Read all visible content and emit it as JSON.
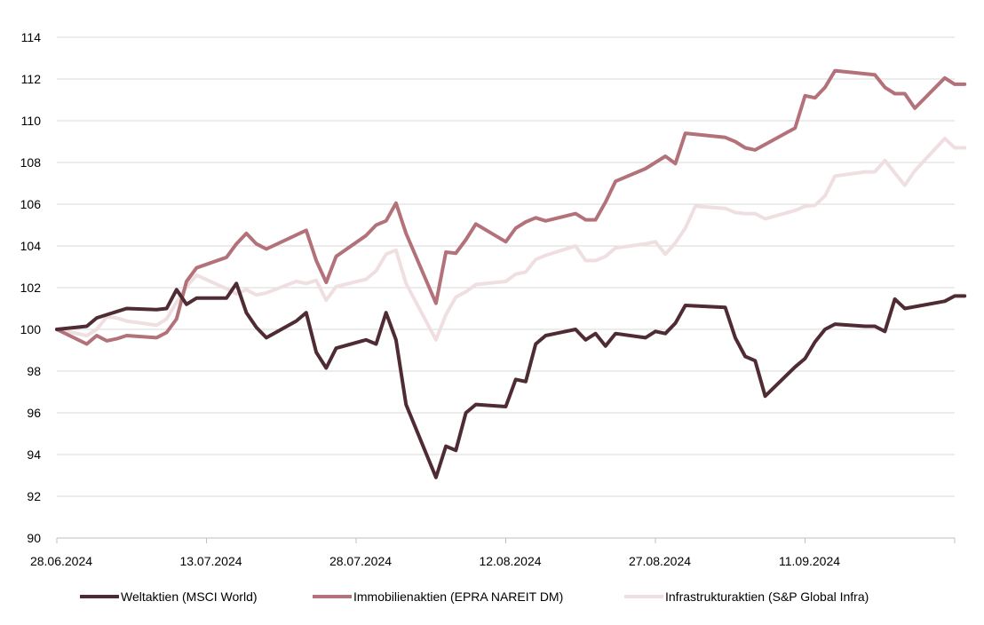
{
  "chart_data": {
    "type": "line",
    "title": "",
    "xlabel": "",
    "ylabel": "",
    "ylim": [
      90,
      114
    ],
    "yticks": [
      "90",
      "92",
      "94",
      "96",
      "98",
      "100",
      "102",
      "104",
      "106",
      "108",
      "110",
      "112",
      "114"
    ],
    "xlim": [
      "28.06.2024",
      "28.09.2024"
    ],
    "xticks": [
      {
        "label": "28.06.2024",
        "date": "2024-06-28"
      },
      {
        "label": "13.07.2024",
        "date": "2024-07-13"
      },
      {
        "label": "28.07.2024",
        "date": "2024-07-28"
      },
      {
        "label": "12.08.2024",
        "date": "2024-08-12"
      },
      {
        "label": "27.08.2024",
        "date": "2024-08-27"
      },
      {
        "label": "11.09.2024",
        "date": "2024-09-11"
      }
    ],
    "grid": "horizontal",
    "legend": "bottom",
    "series": [
      {
        "name": "Weltaktien (MSCI World)",
        "color": "#4f2c34",
        "points": [
          [
            "2024-06-28",
            100.0
          ],
          [
            "2024-07-01",
            100.15
          ],
          [
            "2024-07-02",
            100.55
          ],
          [
            "2024-07-03",
            100.7
          ],
          [
            "2024-07-05",
            101.0
          ],
          [
            "2024-07-08",
            100.95
          ],
          [
            "2024-07-09",
            101.0
          ],
          [
            "2024-07-10",
            101.9
          ],
          [
            "2024-07-11",
            101.2
          ],
          [
            "2024-07-12",
            101.5
          ],
          [
            "2024-07-15",
            101.5
          ],
          [
            "2024-07-16",
            102.2
          ],
          [
            "2024-07-17",
            100.8
          ],
          [
            "2024-07-18",
            100.1
          ],
          [
            "2024-07-19",
            99.6
          ],
          [
            "2024-07-22",
            100.4
          ],
          [
            "2024-07-23",
            100.8
          ],
          [
            "2024-07-24",
            98.9
          ],
          [
            "2024-07-25",
            98.15
          ],
          [
            "2024-07-26",
            99.1
          ],
          [
            "2024-07-29",
            99.5
          ],
          [
            "2024-07-30",
            99.3
          ],
          [
            "2024-07-31",
            100.8
          ],
          [
            "2024-08-01",
            99.5
          ],
          [
            "2024-08-02",
            96.4
          ],
          [
            "2024-08-05",
            92.9
          ],
          [
            "2024-08-06",
            94.4
          ],
          [
            "2024-08-07",
            94.2
          ],
          [
            "2024-08-08",
            96.0
          ],
          [
            "2024-08-09",
            96.4
          ],
          [
            "2024-08-12",
            96.3
          ],
          [
            "2024-08-13",
            97.6
          ],
          [
            "2024-08-14",
            97.5
          ],
          [
            "2024-08-15",
            99.3
          ],
          [
            "2024-08-16",
            99.7
          ],
          [
            "2024-08-19",
            100.0
          ],
          [
            "2024-08-20",
            99.5
          ],
          [
            "2024-08-21",
            99.8
          ],
          [
            "2024-08-22",
            99.2
          ],
          [
            "2024-08-23",
            99.8
          ],
          [
            "2024-08-26",
            99.6
          ],
          [
            "2024-08-27",
            99.9
          ],
          [
            "2024-08-28",
            99.8
          ],
          [
            "2024-08-29",
            100.3
          ],
          [
            "2024-08-30",
            101.15
          ],
          [
            "2024-09-03",
            101.05
          ],
          [
            "2024-09-04",
            99.6
          ],
          [
            "2024-09-05",
            98.7
          ],
          [
            "2024-09-06",
            98.5
          ],
          [
            "2024-09-07",
            96.8
          ],
          [
            "2024-09-10",
            98.2
          ],
          [
            "2024-09-11",
            98.6
          ],
          [
            "2024-09-12",
            99.4
          ],
          [
            "2024-09-13",
            100.0
          ],
          [
            "2024-09-14",
            100.25
          ],
          [
            "2024-09-17",
            100.15
          ],
          [
            "2024-09-18",
            100.15
          ],
          [
            "2024-09-19",
            99.9
          ],
          [
            "2024-09-20",
            101.45
          ],
          [
            "2024-09-21",
            101.0
          ],
          [
            "2024-09-25",
            101.35
          ],
          [
            "2024-09-26",
            101.6
          ],
          [
            "2024-09-27",
            101.6
          ]
        ]
      },
      {
        "name": "Immobilienaktien (EPRA NAREIT DM)",
        "color": "#b3727a",
        "points": [
          [
            "2024-06-28",
            100.0
          ],
          [
            "2024-07-01",
            99.3
          ],
          [
            "2024-07-02",
            99.7
          ],
          [
            "2024-07-03",
            99.45
          ],
          [
            "2024-07-04",
            99.55
          ],
          [
            "2024-07-05",
            99.7
          ],
          [
            "2024-07-08",
            99.6
          ],
          [
            "2024-07-09",
            99.85
          ],
          [
            "2024-07-10",
            100.5
          ],
          [
            "2024-07-11",
            102.3
          ],
          [
            "2024-07-12",
            102.95
          ],
          [
            "2024-07-15",
            103.45
          ],
          [
            "2024-07-16",
            104.1
          ],
          [
            "2024-07-17",
            104.6
          ],
          [
            "2024-07-18",
            104.1
          ],
          [
            "2024-07-19",
            103.85
          ],
          [
            "2024-07-23",
            104.75
          ],
          [
            "2024-07-24",
            103.3
          ],
          [
            "2024-07-25",
            102.25
          ],
          [
            "2024-07-26",
            103.5
          ],
          [
            "2024-07-29",
            104.5
          ],
          [
            "2024-07-30",
            105.0
          ],
          [
            "2024-07-31",
            105.2
          ],
          [
            "2024-08-01",
            106.05
          ],
          [
            "2024-08-02",
            104.6
          ],
          [
            "2024-08-05",
            101.25
          ],
          [
            "2024-08-06",
            103.7
          ],
          [
            "2024-08-07",
            103.65
          ],
          [
            "2024-08-08",
            104.3
          ],
          [
            "2024-08-09",
            105.05
          ],
          [
            "2024-08-12",
            104.2
          ],
          [
            "2024-08-13",
            104.85
          ],
          [
            "2024-08-14",
            105.15
          ],
          [
            "2024-08-15",
            105.35
          ],
          [
            "2024-08-16",
            105.2
          ],
          [
            "2024-08-19",
            105.55
          ],
          [
            "2024-08-20",
            105.25
          ],
          [
            "2024-08-21",
            105.25
          ],
          [
            "2024-08-22",
            106.1
          ],
          [
            "2024-08-23",
            107.1
          ],
          [
            "2024-08-26",
            107.7
          ],
          [
            "2024-08-27",
            108.0
          ],
          [
            "2024-08-28",
            108.3
          ],
          [
            "2024-08-29",
            107.95
          ],
          [
            "2024-08-30",
            109.4
          ],
          [
            "2024-09-03",
            109.2
          ],
          [
            "2024-09-04",
            109.0
          ],
          [
            "2024-09-05",
            108.7
          ],
          [
            "2024-09-06",
            108.6
          ],
          [
            "2024-09-10",
            109.65
          ],
          [
            "2024-09-11",
            111.2
          ],
          [
            "2024-09-12",
            111.1
          ],
          [
            "2024-09-13",
            111.6
          ],
          [
            "2024-09-14",
            112.4
          ],
          [
            "2024-09-18",
            112.2
          ],
          [
            "2024-09-19",
            111.6
          ],
          [
            "2024-09-20",
            111.3
          ],
          [
            "2024-09-21",
            111.3
          ],
          [
            "2024-09-22",
            110.6
          ],
          [
            "2024-09-25",
            112.05
          ],
          [
            "2024-09-26",
            111.75
          ],
          [
            "2024-09-27",
            111.75
          ]
        ]
      },
      {
        "name": "Infrastrukturaktien (S&P Global Infra)",
        "color": "#f0dfe1",
        "points": [
          [
            "2024-06-28",
            100.0
          ],
          [
            "2024-07-01",
            99.7
          ],
          [
            "2024-07-02",
            100.0
          ],
          [
            "2024-07-03",
            100.6
          ],
          [
            "2024-07-04",
            100.55
          ],
          [
            "2024-07-05",
            100.4
          ],
          [
            "2024-07-08",
            100.2
          ],
          [
            "2024-07-09",
            100.5
          ],
          [
            "2024-07-10",
            101.3
          ],
          [
            "2024-07-11",
            102.05
          ],
          [
            "2024-07-12",
            102.6
          ],
          [
            "2024-07-15",
            101.95
          ],
          [
            "2024-07-16",
            101.7
          ],
          [
            "2024-07-17",
            101.9
          ],
          [
            "2024-07-18",
            101.65
          ],
          [
            "2024-07-19",
            101.75
          ],
          [
            "2024-07-22",
            102.3
          ],
          [
            "2024-07-23",
            102.2
          ],
          [
            "2024-07-24",
            102.35
          ],
          [
            "2024-07-25",
            101.4
          ],
          [
            "2024-07-26",
            102.05
          ],
          [
            "2024-07-29",
            102.4
          ],
          [
            "2024-07-30",
            102.8
          ],
          [
            "2024-07-31",
            103.6
          ],
          [
            "2024-08-01",
            103.8
          ],
          [
            "2024-08-02",
            102.2
          ],
          [
            "2024-08-05",
            99.5
          ],
          [
            "2024-08-06",
            100.7
          ],
          [
            "2024-08-07",
            101.55
          ],
          [
            "2024-08-08",
            101.8
          ],
          [
            "2024-08-09",
            102.15
          ],
          [
            "2024-08-12",
            102.3
          ],
          [
            "2024-08-13",
            102.65
          ],
          [
            "2024-08-14",
            102.75
          ],
          [
            "2024-08-15",
            103.35
          ],
          [
            "2024-08-16",
            103.55
          ],
          [
            "2024-08-19",
            104.0
          ],
          [
            "2024-08-20",
            103.3
          ],
          [
            "2024-08-21",
            103.3
          ],
          [
            "2024-08-22",
            103.5
          ],
          [
            "2024-08-23",
            103.9
          ],
          [
            "2024-08-26",
            104.1
          ],
          [
            "2024-08-27",
            104.2
          ],
          [
            "2024-08-28",
            103.6
          ],
          [
            "2024-08-29",
            104.15
          ],
          [
            "2024-08-30",
            104.85
          ],
          [
            "2024-08-31",
            105.9
          ],
          [
            "2024-09-03",
            105.8
          ],
          [
            "2024-09-04",
            105.6
          ],
          [
            "2024-09-05",
            105.55
          ],
          [
            "2024-09-06",
            105.55
          ],
          [
            "2024-09-07",
            105.3
          ],
          [
            "2024-09-10",
            105.7
          ],
          [
            "2024-09-11",
            105.9
          ],
          [
            "2024-09-12",
            105.95
          ],
          [
            "2024-09-13",
            106.4
          ],
          [
            "2024-09-14",
            107.35
          ],
          [
            "2024-09-17",
            107.55
          ],
          [
            "2024-09-18",
            107.55
          ],
          [
            "2024-09-19",
            108.1
          ],
          [
            "2024-09-20",
            107.5
          ],
          [
            "2024-09-21",
            106.9
          ],
          [
            "2024-09-22",
            107.6
          ],
          [
            "2024-09-25",
            109.15
          ],
          [
            "2024-09-26",
            108.7
          ],
          [
            "2024-09-27",
            108.7
          ]
        ]
      }
    ]
  }
}
